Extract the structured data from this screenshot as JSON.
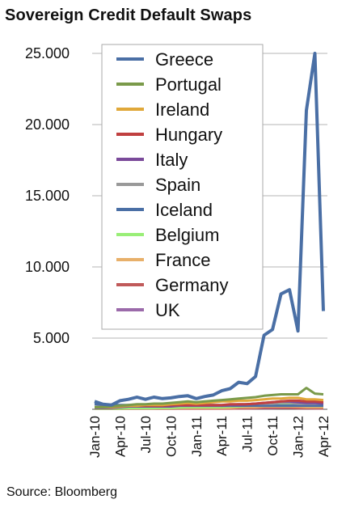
{
  "chart_data": {
    "type": "line",
    "title": "Sovereign Credit Default Swaps",
    "source": "Source: Bloomberg",
    "xlabel": "",
    "ylabel": "",
    "ylim": [
      0,
      25000
    ],
    "yticks": [
      {
        "value": 25000,
        "label": "25.000"
      },
      {
        "value": 20000,
        "label": "20.000"
      },
      {
        "value": 15000,
        "label": "15.000"
      },
      {
        "value": 10000,
        "label": "10.000"
      },
      {
        "value": 5000,
        "label": "5.000"
      }
    ],
    "xtick_labels": [
      "Jan-10",
      "Apr-10",
      "Jul-10",
      "Oct-10",
      "Jan-11",
      "Apr-11",
      "Jul-11",
      "Oct-11",
      "Jan-12",
      "Apr-12"
    ],
    "x": [
      "Jan-10",
      "Feb-10",
      "Mar-10",
      "Apr-10",
      "May-10",
      "Jun-10",
      "Jul-10",
      "Aug-10",
      "Sep-10",
      "Oct-10",
      "Nov-10",
      "Dec-10",
      "Jan-11",
      "Feb-11",
      "Mar-11",
      "Apr-11",
      "May-11",
      "Jun-11",
      "Jul-11",
      "Aug-11",
      "Sep-11",
      "Oct-11",
      "Nov-11",
      "Dec-11",
      "Jan-12",
      "Feb-12",
      "Mar-12",
      "Apr-12"
    ],
    "grid": true,
    "legend_position": "top-left",
    "series": [
      {
        "name": "Greece",
        "color": "#4a6fa5",
        "values": [
          550,
          350,
          300,
          600,
          700,
          850,
          700,
          850,
          750,
          800,
          900,
          950,
          750,
          900,
          1000,
          1300,
          1450,
          1900,
          1800,
          2300,
          5200,
          5600,
          8100,
          8400,
          5500,
          21000,
          25000,
          6900
        ]
      },
      {
        "name": "Portugal",
        "color": "#7a9a4a",
        "values": [
          150,
          150,
          200,
          250,
          300,
          350,
          350,
          400,
          400,
          450,
          500,
          550,
          500,
          550,
          600,
          650,
          700,
          750,
          800,
          850,
          950,
          1000,
          1050,
          1050,
          1050,
          1500,
          1100,
          1050
        ]
      },
      {
        "name": "Ireland",
        "color": "#e0a83a",
        "values": [
          150,
          150,
          150,
          200,
          250,
          250,
          300,
          300,
          300,
          350,
          400,
          450,
          400,
          450,
          500,
          550,
          550,
          600,
          600,
          650,
          700,
          750,
          750,
          800,
          800,
          700,
          700,
          650
        ]
      },
      {
        "name": "Hungary",
        "color": "#c04040",
        "values": [
          150,
          150,
          150,
          200,
          250,
          250,
          250,
          250,
          250,
          300,
          300,
          300,
          300,
          300,
          300,
          300,
          350,
          350,
          350,
          400,
          450,
          500,
          550,
          600,
          600,
          550,
          550,
          500
        ]
      },
      {
        "name": "Italy",
        "color": "#7a4a9a",
        "values": [
          100,
          100,
          100,
          150,
          200,
          200,
          200,
          200,
          200,
          200,
          250,
          250,
          250,
          250,
          250,
          250,
          300,
          300,
          350,
          400,
          450,
          500,
          550,
          550,
          500,
          450,
          450,
          400
        ]
      },
      {
        "name": "Spain",
        "color": "#999999",
        "values": [
          100,
          100,
          100,
          150,
          200,
          200,
          200,
          200,
          200,
          250,
          250,
          300,
          300,
          300,
          300,
          300,
          300,
          350,
          350,
          400,
          400,
          400,
          450,
          450,
          400,
          400,
          400,
          450
        ]
      },
      {
        "name": "Iceland",
        "color": "#4a6fa5",
        "values": [
          350,
          300,
          300,
          300,
          300,
          300,
          300,
          300,
          300,
          300,
          300,
          300,
          300,
          300,
          300,
          250,
          250,
          250,
          250,
          250,
          250,
          250,
          250,
          250,
          250,
          250,
          250,
          250
        ]
      },
      {
        "name": "Belgium",
        "color": "#99ee77",
        "values": [
          50,
          50,
          50,
          50,
          80,
          80,
          80,
          80,
          100,
          100,
          120,
          150,
          150,
          150,
          150,
          150,
          200,
          200,
          250,
          300,
          300,
          350,
          350,
          350,
          300,
          250,
          250,
          250
        ]
      },
      {
        "name": "France",
        "color": "#e8b06a",
        "values": [
          50,
          50,
          50,
          50,
          80,
          80,
          80,
          80,
          80,
          80,
          100,
          100,
          100,
          100,
          100,
          100,
          100,
          150,
          150,
          150,
          200,
          200,
          200,
          200,
          180,
          150,
          150,
          150
        ]
      },
      {
        "name": "Germany",
        "color": "#c05a5a",
        "values": [
          30,
          30,
          30,
          30,
          40,
          40,
          40,
          40,
          40,
          40,
          50,
          50,
          50,
          50,
          50,
          50,
          50,
          60,
          60,
          80,
          100,
          100,
          100,
          100,
          80,
          80,
          70,
          70
        ]
      },
      {
        "name": "UK",
        "color": "#9b6aaa",
        "values": [
          60,
          60,
          60,
          60,
          70,
          70,
          70,
          70,
          70,
          70,
          70,
          70,
          70,
          70,
          70,
          70,
          70,
          70,
          70,
          80,
          80,
          80,
          90,
          90,
          80,
          80,
          70,
          70
        ]
      }
    ]
  }
}
